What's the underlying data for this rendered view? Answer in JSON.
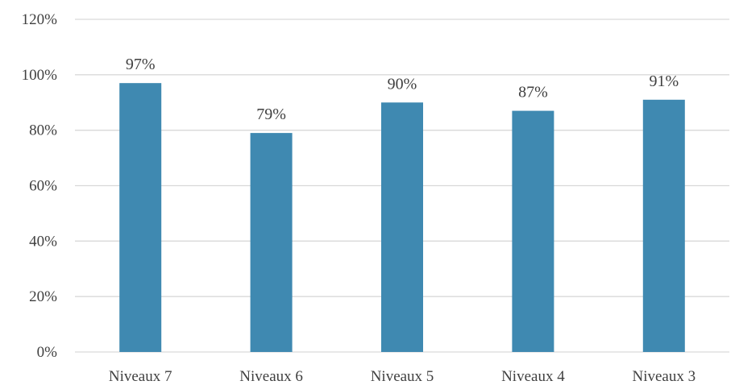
{
  "chart_data": {
    "type": "bar",
    "categories": [
      "Niveaux 7",
      "Niveaux 6",
      "Niveaux 5",
      "Niveaux 4",
      "Niveaux 3"
    ],
    "values": [
      97,
      79,
      90,
      87,
      91
    ],
    "data_labels": [
      "97%",
      "79%",
      "90%",
      "87%",
      "91%"
    ],
    "y_ticks": [
      0,
      20,
      40,
      60,
      80,
      100,
      120
    ],
    "y_tick_labels": [
      "0%",
      "20%",
      "40%",
      "60%",
      "80%",
      "100%",
      "120%"
    ],
    "ylim": [
      0,
      120
    ],
    "grid": true,
    "legend": "none",
    "bar_color": "#3f89b1",
    "gridline_color": "#d9d9d9",
    "text_color": "#404040"
  }
}
